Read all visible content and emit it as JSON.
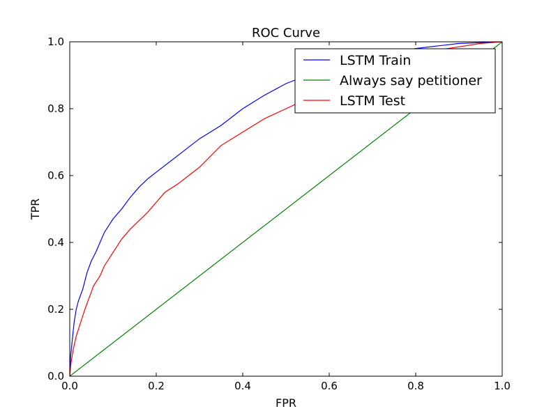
{
  "chart_data": {
    "type": "line",
    "title": "ROC Curve",
    "xlabel": "FPR",
    "ylabel": "TPR",
    "xlim": [
      0.0,
      1.0
    ],
    "ylim": [
      0.0,
      1.0
    ],
    "x_ticks": [
      "0.0",
      "0.2",
      "0.4",
      "0.6",
      "0.8",
      "1.0"
    ],
    "y_ticks": [
      "0.0",
      "0.2",
      "0.4",
      "0.6",
      "0.8",
      "1.0"
    ],
    "grid": false,
    "legend_position": "top-right",
    "series": [
      {
        "name": "LSTM Train",
        "color": "#0000ff",
        "points": [
          [
            0,
            0
          ],
          [
            0.002,
            0.06
          ],
          [
            0.006,
            0.11
          ],
          [
            0.01,
            0.16
          ],
          [
            0.015,
            0.2
          ],
          [
            0.02,
            0.225
          ],
          [
            0.03,
            0.26
          ],
          [
            0.04,
            0.31
          ],
          [
            0.05,
            0.345
          ],
          [
            0.06,
            0.37
          ],
          [
            0.07,
            0.4
          ],
          [
            0.08,
            0.43
          ],
          [
            0.1,
            0.47
          ],
          [
            0.12,
            0.5
          ],
          [
            0.14,
            0.535
          ],
          [
            0.16,
            0.565
          ],
          [
            0.18,
            0.59
          ],
          [
            0.2,
            0.61
          ],
          [
            0.25,
            0.66
          ],
          [
            0.3,
            0.71
          ],
          [
            0.35,
            0.75
          ],
          [
            0.4,
            0.8
          ],
          [
            0.45,
            0.84
          ],
          [
            0.5,
            0.875
          ],
          [
            0.55,
            0.9
          ],
          [
            0.6,
            0.93
          ],
          [
            0.65,
            0.95
          ],
          [
            0.7,
            0.96
          ],
          [
            0.8,
            0.98
          ],
          [
            0.9,
            0.995
          ],
          [
            1.0,
            1.0
          ]
        ]
      },
      {
        "name": "Always say petitioner",
        "color": "#008000",
        "points": [
          [
            0,
            0
          ],
          [
            1,
            1
          ]
        ]
      },
      {
        "name": "LSTM Test",
        "color": "#ff0000",
        "points": [
          [
            0,
            0
          ],
          [
            0.003,
            0.04
          ],
          [
            0.008,
            0.08
          ],
          [
            0.015,
            0.12
          ],
          [
            0.025,
            0.16
          ],
          [
            0.035,
            0.2
          ],
          [
            0.045,
            0.235
          ],
          [
            0.055,
            0.27
          ],
          [
            0.07,
            0.3
          ],
          [
            0.08,
            0.33
          ],
          [
            0.1,
            0.37
          ],
          [
            0.12,
            0.41
          ],
          [
            0.14,
            0.44
          ],
          [
            0.16,
            0.465
          ],
          [
            0.18,
            0.49
          ],
          [
            0.2,
            0.52
          ],
          [
            0.22,
            0.55
          ],
          [
            0.25,
            0.575
          ],
          [
            0.3,
            0.625
          ],
          [
            0.35,
            0.69
          ],
          [
            0.4,
            0.73
          ],
          [
            0.45,
            0.77
          ],
          [
            0.5,
            0.8
          ],
          [
            0.55,
            0.83
          ],
          [
            0.6,
            0.86
          ],
          [
            0.65,
            0.9
          ],
          [
            0.7,
            0.93
          ],
          [
            0.75,
            0.95
          ],
          [
            0.8,
            0.965
          ],
          [
            0.85,
            0.975
          ],
          [
            0.9,
            0.985
          ],
          [
            0.95,
            0.995
          ],
          [
            1.0,
            1.0
          ]
        ]
      }
    ]
  }
}
